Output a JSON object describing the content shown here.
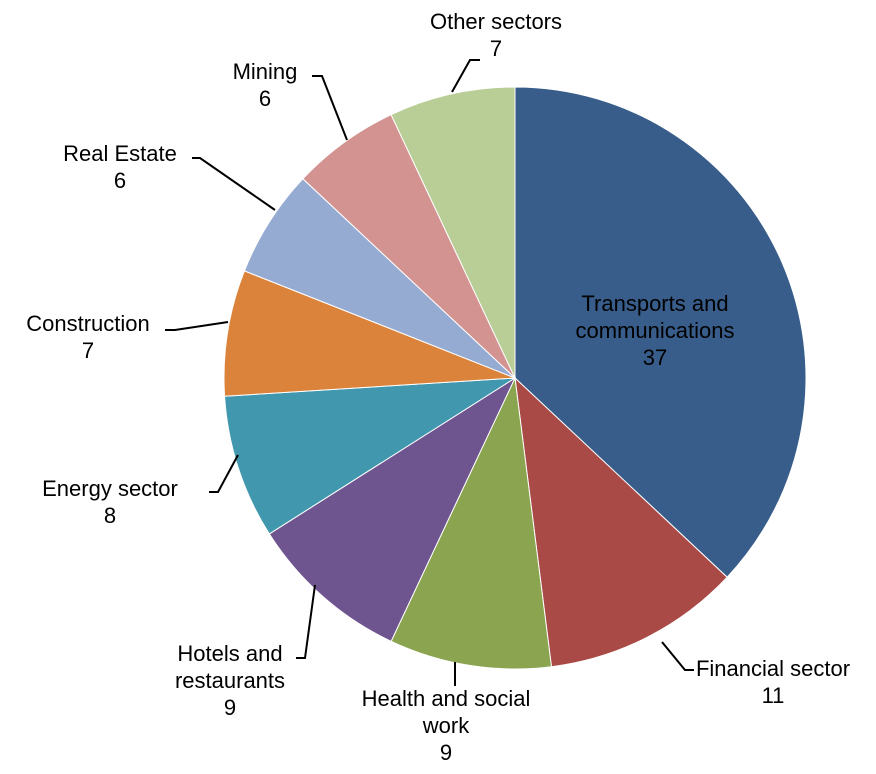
{
  "chart_data": {
    "type": "pie",
    "categories": [
      "Transports and communications",
      "Financial sector",
      "Health and social work",
      "Hotels and restaurants",
      "Energy sector",
      "Construction",
      "Real Estate",
      "Mining",
      "Other sectors"
    ],
    "values": [
      37,
      11,
      9,
      9,
      8,
      7,
      6,
      6,
      7
    ],
    "colors": [
      "#385d8a",
      "#a94a46",
      "#8ba44f",
      "#6f5590",
      "#4097ae",
      "#db833a",
      "#95abd2",
      "#d39391",
      "#b9cd96"
    ]
  }
}
